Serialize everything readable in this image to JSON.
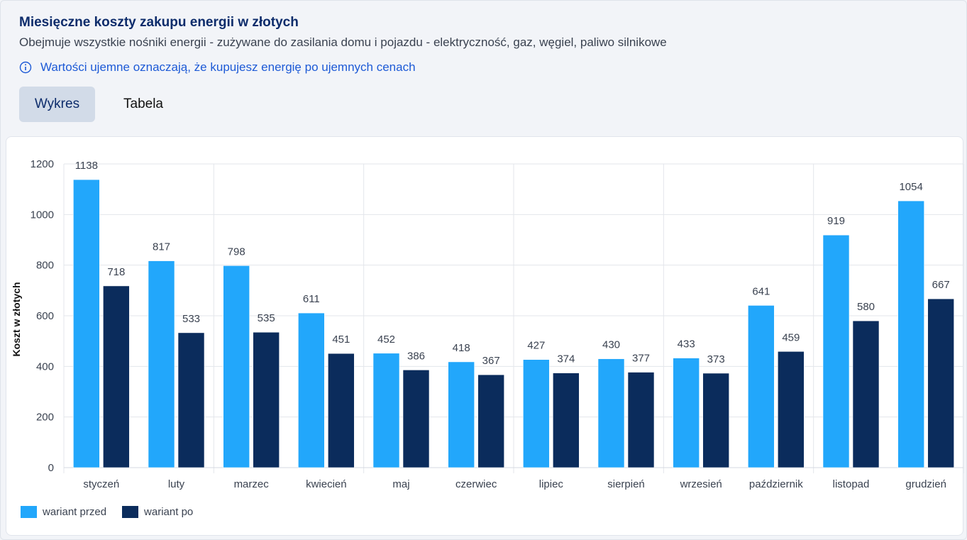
{
  "header": {
    "title": "Miesięczne koszty zakupu energii w złotych",
    "subtitle": "Obejmuje wszystkie nośniki energii - zużywane do zasilania domu i pojazdu - elektryczność, gaz, węgiel, paliwo silnikowe",
    "info_text": "Wartości ujemne oznaczają, że kupujesz energię po ujemnych cenach",
    "info_icon": "info-circle-icon"
  },
  "tabs": [
    {
      "label": "Wykres",
      "active": true
    },
    {
      "label": "Tabela",
      "active": false
    }
  ],
  "colors": {
    "series_before": "#22a7fb",
    "series_after": "#0b2c5c",
    "title": "#0d2c6b",
    "info": "#1d5ad6"
  },
  "chart_data": {
    "type": "bar",
    "title": "",
    "xlabel": "",
    "ylabel": "Koszt w złotych",
    "ylim": [
      0,
      1200
    ],
    "yticks": [
      0,
      200,
      400,
      600,
      800,
      1000,
      1200
    ],
    "grid": true,
    "legend_position": "bottom-left",
    "categories": [
      "styczeń",
      "luty",
      "marzec",
      "kwiecień",
      "maj",
      "czerwiec",
      "lipiec",
      "sierpień",
      "wrzesień",
      "październik",
      "listopad",
      "grudzień"
    ],
    "series": [
      {
        "name": "wariant przed",
        "color": "#22a7fb",
        "values": [
          1138,
          817,
          798,
          611,
          452,
          418,
          427,
          430,
          433,
          641,
          919,
          1054
        ]
      },
      {
        "name": "wariant po",
        "color": "#0b2c5c",
        "values": [
          718,
          533,
          535,
          451,
          386,
          367,
          374,
          377,
          373,
          459,
          580,
          667
        ]
      }
    ]
  }
}
